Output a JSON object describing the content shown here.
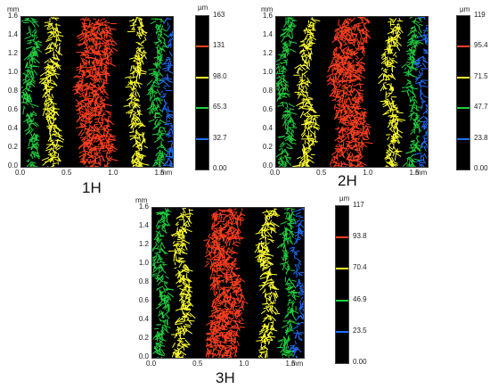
{
  "panels": [
    {
      "id": "1H",
      "label": "1H",
      "y_unit": "mm",
      "x_unit": "mm",
      "y_ticks": [
        "0.0",
        "0.2",
        "0.4",
        "0.6",
        "0.8",
        "1.0",
        "1.2",
        "1.4",
        "1.6"
      ],
      "x_ticks": [
        "0.0",
        "0.5",
        "1.0",
        "1.5"
      ],
      "colorbar_unit": "µm",
      "colorbar_labels": [
        "163",
        "131",
        "98.0",
        "65.3",
        "32.7",
        "0.00"
      ],
      "colorbar_colors": [
        "#000000",
        "#ff4020",
        "#ffff30",
        "#20d040",
        "#2070ff",
        "#000000"
      ]
    },
    {
      "id": "2H",
      "label": "2H",
      "y_unit": "mm",
      "x_unit": "mm",
      "y_ticks": [
        "0.0",
        "0.2",
        "0.4",
        "0.6",
        "0.8",
        "1.0",
        "1.2",
        "1.4",
        "1.6"
      ],
      "x_ticks": [
        "0.0",
        "0.5",
        "1.0",
        "1.5"
      ],
      "colorbar_unit": "µm",
      "colorbar_labels": [
        "119",
        "95.4",
        "71.5",
        "47.7",
        "23.8",
        "0.00"
      ],
      "colorbar_colors": [
        "#000000",
        "#ff4020",
        "#ffff30",
        "#20d040",
        "#2070ff",
        "#000000"
      ]
    },
    {
      "id": "3H",
      "label": "3H",
      "y_unit": "mm",
      "x_unit": "mm",
      "y_ticks": [
        "0.0",
        "0.2",
        "0.4",
        "0.6",
        "0.8",
        "1.0",
        "1.2",
        "1.4",
        "1.6"
      ],
      "x_ticks": [
        "0.0",
        "0.5",
        "1.0",
        "1.5"
      ],
      "colorbar_unit": "µm",
      "colorbar_labels": [
        "117",
        "93.8",
        "70.4",
        "46.9",
        "23.5",
        "0.00"
      ],
      "colorbar_colors": [
        "#000000",
        "#ff4020",
        "#ffff30",
        "#20d040",
        "#2070ff",
        "#000000"
      ]
    }
  ]
}
